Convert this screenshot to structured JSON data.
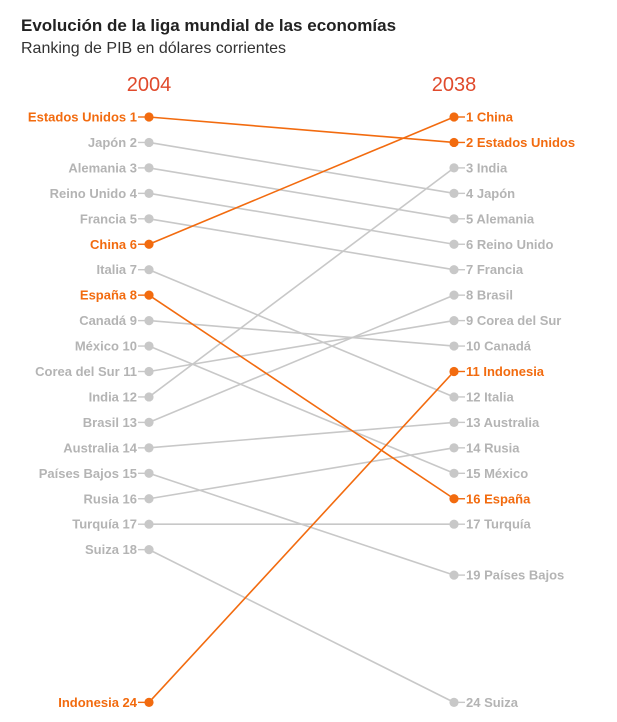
{
  "title": "Evolución de la liga mundial de las economías",
  "subtitle": "Ranking de PIB en dólares corrientes",
  "colors": {
    "highlight": "#f26b0f",
    "muted": "#c8c8c8",
    "muted_text": "#b4b4b4",
    "year": "#e04a2c"
  },
  "chart_data": {
    "type": "slope",
    "left_year": "2004",
    "right_year": "2038",
    "countries": [
      {
        "left_label": "Estados Unidos 1",
        "right_label": "2 Estados Unidos",
        "rank_2004": 1,
        "rank_2038": 2,
        "highlight": true
      },
      {
        "left_label": "Japón 2",
        "right_label": "4 Japón",
        "rank_2004": 2,
        "rank_2038": 4,
        "highlight": false
      },
      {
        "left_label": "Alemania 3",
        "right_label": "5 Alemania",
        "rank_2004": 3,
        "rank_2038": 5,
        "highlight": false
      },
      {
        "left_label": "Reino Unido 4",
        "right_label": "6 Reino Unido",
        "rank_2004": 4,
        "rank_2038": 6,
        "highlight": false
      },
      {
        "left_label": "Francia 5",
        "right_label": "7 Francia",
        "rank_2004": 5,
        "rank_2038": 7,
        "highlight": false
      },
      {
        "left_label": "China 6",
        "right_label": "1 China",
        "rank_2004": 6,
        "rank_2038": 1,
        "highlight": true
      },
      {
        "left_label": "Italia 7",
        "right_label": "12 Italia",
        "rank_2004": 7,
        "rank_2038": 12,
        "highlight": false
      },
      {
        "left_label": "España 8",
        "right_label": "16 España",
        "rank_2004": 8,
        "rank_2038": 16,
        "highlight": true
      },
      {
        "left_label": "Canadá 9",
        "right_label": "10 Canadá",
        "rank_2004": 9,
        "rank_2038": 10,
        "highlight": false
      },
      {
        "left_label": "México 10",
        "right_label": "15 México",
        "rank_2004": 10,
        "rank_2038": 15,
        "highlight": false
      },
      {
        "left_label": "Corea del Sur 11",
        "right_label": "9 Corea del Sur",
        "rank_2004": 11,
        "rank_2038": 9,
        "highlight": false
      },
      {
        "left_label": "India 12",
        "right_label": "3 India",
        "rank_2004": 12,
        "rank_2038": 3,
        "highlight": false
      },
      {
        "left_label": "Brasil 13",
        "right_label": "8 Brasil",
        "rank_2004": 13,
        "rank_2038": 8,
        "highlight": false
      },
      {
        "left_label": "Australia 14",
        "right_label": "13 Australia",
        "rank_2004": 14,
        "rank_2038": 13,
        "highlight": false
      },
      {
        "left_label": "Países Bajos 15",
        "right_label": "19 Países Bajos",
        "rank_2004": 15,
        "rank_2038": 19,
        "highlight": false
      },
      {
        "left_label": "Rusia 16",
        "right_label": "14 Rusia",
        "rank_2004": 16,
        "rank_2038": 14,
        "highlight": false
      },
      {
        "left_label": "Turquía 17",
        "right_label": "17 Turquía",
        "rank_2004": 17,
        "rank_2038": 17,
        "highlight": false
      },
      {
        "left_label": "Suiza 18",
        "right_label": "24 Suiza",
        "rank_2004": 18,
        "rank_2038": 24,
        "highlight": false
      },
      {
        "left_label": "Indonesia 24",
        "right_label": "11 Indonesia",
        "rank_2004": 24,
        "rank_2038": 11,
        "highlight": true
      }
    ]
  }
}
